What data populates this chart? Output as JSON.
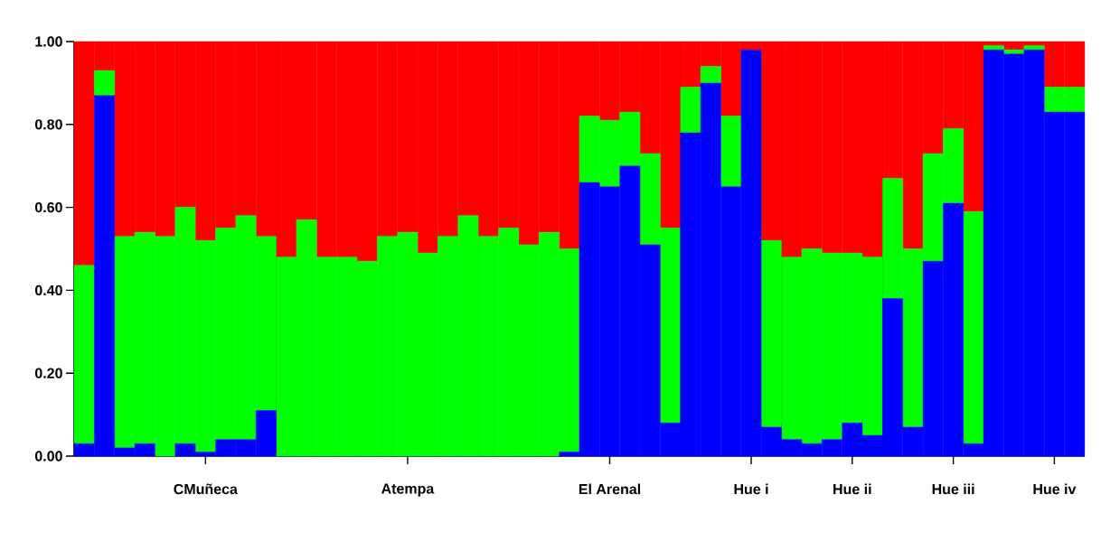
{
  "chart_data": {
    "type": "bar",
    "stacked": true,
    "categories": [
      null,
      null,
      null,
      null,
      null,
      null,
      "CMuñeca",
      null,
      null,
      null,
      null,
      null,
      null,
      null,
      null,
      null,
      "Atempa",
      null,
      null,
      null,
      null,
      null,
      null,
      null,
      null,
      null,
      "El Arenal",
      null,
      null,
      null,
      null,
      null,
      null,
      "Hue i",
      null,
      null,
      null,
      null,
      "Hue ii",
      null,
      null,
      null,
      null,
      "Hue iii",
      null,
      null,
      null,
      null,
      "Hue iv",
      null
    ],
    "series": [
      {
        "color": "#0000ff",
        "values": [
          0.03,
          0.87,
          0.02,
          0.03,
          0,
          0.03,
          0.01,
          0.04,
          0.04,
          0.11,
          0,
          0,
          0,
          0,
          0,
          0,
          0,
          0,
          0,
          0,
          0,
          0,
          0,
          0,
          0.01,
          0.66,
          0.65,
          0.7,
          0.51,
          0.08,
          0.78,
          0.9,
          0.65,
          0.98,
          0.07,
          0.04,
          0.03,
          0.04,
          0.08,
          0.05,
          0.38,
          0.07,
          0.47,
          0.61,
          0.03,
          0.98,
          0.97,
          0.98,
          0.83,
          0.83
        ]
      },
      {
        "color": "#00ff00",
        "values": [
          0.43,
          0.06,
          0.51,
          0.51,
          0.53,
          0.57,
          0.51,
          0.51,
          0.54,
          0.42,
          0.48,
          0.57,
          0.48,
          0.48,
          0.47,
          0.53,
          0.54,
          0.49,
          0.53,
          0.58,
          0.53,
          0.55,
          0.51,
          0.54,
          0.49,
          0.16,
          0.16,
          0.13,
          0.22,
          0.47,
          0.11,
          0.04,
          0.17,
          0,
          0.45,
          0.44,
          0.47,
          0.45,
          0.41,
          0.43,
          0.29,
          0.43,
          0.26,
          0.18,
          0.56,
          0.01,
          0.01,
          0.01,
          0.06,
          0.06
        ]
      },
      {
        "color": "#ff0000",
        "values": [
          0.54,
          0.07,
          0.47,
          0.46,
          0.47,
          0.4,
          0.48,
          0.45,
          0.42,
          0.47,
          0.52,
          0.43,
          0.52,
          0.52,
          0.53,
          0.47,
          0.46,
          0.51,
          0.47,
          0.42,
          0.47,
          0.45,
          0.49,
          0.46,
          0.5,
          0.18,
          0.19,
          0.17,
          0.27,
          0.45,
          0.11,
          0.06,
          0.18,
          0.02,
          0.48,
          0.52,
          0.5,
          0.51,
          0.51,
          0.52,
          0.33,
          0.5,
          0.27,
          0.21,
          0.41,
          0.01,
          0.02,
          0.01,
          0.11,
          0.11
        ]
      }
    ],
    "ylim": [
      0,
      1
    ],
    "yticks": [
      {
        "value": 0,
        "label": "0.00"
      },
      {
        "value": 0.2,
        "label": "0.20"
      },
      {
        "value": 0.4,
        "label": "0.40"
      },
      {
        "value": 0.6,
        "label": "0.60"
      },
      {
        "value": 0.8,
        "label": "0.80"
      },
      {
        "value": 1,
        "label": "1.00"
      }
    ]
  }
}
